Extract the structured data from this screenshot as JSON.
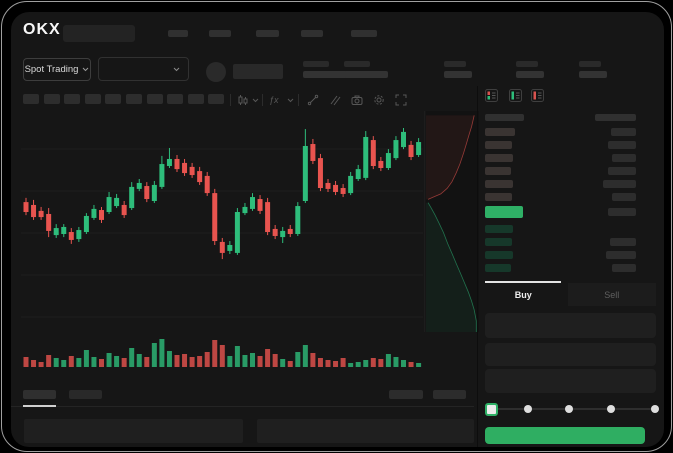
{
  "window": {
    "brand": "OKX"
  },
  "nav": {
    "item_placeholders": 5
  },
  "market_bar": {
    "selector_label": "Spot Trading",
    "pair_dropdown_value": "",
    "stat_placeholders": 5
  },
  "chart_toolbar": {
    "timeframe_placeholders": 10,
    "indicator_label": "ƒx",
    "tool_icons": [
      "candlestick-icon",
      "chevron-down-icon",
      "indicators-icon",
      "chevron-down-icon",
      "trendline-icon",
      "draw-tool-icon",
      "camera-icon",
      "settings-icon",
      "fullscreen-icon"
    ]
  },
  "chart_data": [
    {
      "type": "candlestick",
      "title": "",
      "x_axis": "time (tick labels not visible)",
      "y_axis": "price (scale hidden, relative units 0-100)",
      "grid": "horizontal only, unlabeled",
      "up_color": "#2EBD7B",
      "down_color": "#E8544F",
      "candles": [
        [
          59.5,
          61.4,
          53.6,
          55.0
        ],
        [
          58.2,
          60.5,
          51.4,
          52.7
        ],
        [
          55.5,
          57.3,
          51.4,
          52.7
        ],
        [
          54.1,
          56.8,
          43.6,
          46.4
        ],
        [
          44.5,
          49.5,
          43.2,
          47.7
        ],
        [
          45.0,
          49.5,
          43.6,
          48.2
        ],
        [
          45.9,
          47.7,
          40.5,
          42.3
        ],
        [
          42.7,
          48.2,
          41.4,
          46.8
        ],
        [
          45.9,
          54.5,
          45.0,
          53.2
        ],
        [
          52.3,
          58.2,
          51.4,
          56.4
        ],
        [
          55.9,
          57.3,
          50.0,
          51.4
        ],
        [
          55.0,
          64.1,
          54.1,
          61.8
        ],
        [
          57.7,
          63.2,
          56.8,
          61.4
        ],
        [
          58.2,
          60.0,
          52.3,
          53.6
        ],
        [
          56.8,
          68.6,
          55.9,
          66.4
        ],
        [
          65.5,
          70.0,
          64.5,
          68.2
        ],
        [
          66.8,
          68.6,
          59.5,
          60.9
        ],
        [
          60.0,
          69.1,
          59.1,
          67.3
        ],
        [
          66.4,
          80.5,
          65.5,
          76.8
        ],
        [
          75.9,
          84.1,
          75.0,
          79.1
        ],
        [
          79.1,
          80.9,
          73.2,
          74.5
        ],
        [
          77.3,
          79.1,
          71.4,
          72.7
        ],
        [
          75.5,
          77.3,
          70.5,
          71.8
        ],
        [
          73.6,
          75.5,
          67.3,
          68.6
        ],
        [
          71.4,
          73.2,
          62.3,
          63.6
        ],
        [
          63.6,
          65.5,
          40.0,
          41.8
        ],
        [
          41.4,
          43.2,
          33.6,
          36.4
        ],
        [
          37.3,
          41.8,
          35.9,
          40.0
        ],
        [
          36.4,
          56.8,
          35.5,
          55.0
        ],
        [
          54.5,
          59.1,
          53.6,
          57.3
        ],
        [
          56.4,
          63.6,
          55.5,
          61.8
        ],
        [
          60.9,
          62.7,
          54.1,
          55.5
        ],
        [
          59.5,
          61.4,
          44.5,
          45.9
        ],
        [
          47.3,
          49.1,
          42.7,
          44.1
        ],
        [
          43.6,
          48.2,
          40.9,
          46.4
        ],
        [
          47.3,
          49.1,
          43.6,
          45.0
        ],
        [
          45.0,
          59.5,
          44.1,
          57.7
        ],
        [
          60.0,
          92.7,
          59.1,
          85.0
        ],
        [
          85.9,
          88.2,
          76.8,
          78.2
        ],
        [
          79.5,
          81.4,
          64.5,
          65.9
        ],
        [
          68.2,
          70.0,
          64.1,
          65.5
        ],
        [
          67.3,
          69.1,
          62.7,
          64.1
        ],
        [
          65.9,
          67.7,
          61.8,
          63.2
        ],
        [
          63.6,
          73.2,
          62.7,
          71.4
        ],
        [
          70.0,
          76.4,
          69.1,
          74.5
        ],
        [
          70.5,
          91.8,
          69.5,
          89.1
        ],
        [
          87.7,
          89.5,
          74.5,
          75.9
        ],
        [
          78.2,
          80.0,
          73.6,
          75.0
        ],
        [
          75.0,
          83.6,
          74.1,
          81.8
        ],
        [
          79.5,
          89.5,
          78.6,
          87.7
        ],
        [
          84.5,
          93.2,
          83.6,
          91.4
        ],
        [
          85.5,
          87.3,
          78.6,
          80.0
        ],
        [
          80.9,
          88.6,
          80.0,
          86.8
        ]
      ],
      "volume": [
        10,
        7,
        5,
        12,
        9,
        7,
        11,
        9,
        17,
        10,
        8,
        14,
        11,
        9,
        19,
        13,
        10,
        24,
        28,
        16,
        12,
        13,
        10,
        11,
        15,
        27,
        22,
        11,
        21,
        12,
        14,
        11,
        18,
        13,
        8,
        6,
        15,
        22,
        14,
        9,
        7,
        6,
        9,
        4,
        5,
        7,
        9,
        8,
        13,
        10,
        7,
        5,
        4
      ]
    },
    {
      "type": "area-depth",
      "orientation": "vertical (asks top, bids bottom)",
      "ask_color": "#E8544F",
      "bid_color": "#2EBD7B",
      "ask_curve": [
        [
          0.91,
          0.02
        ],
        [
          0.86,
          0.07
        ],
        [
          0.81,
          0.11
        ],
        [
          0.76,
          0.15
        ],
        [
          0.71,
          0.19
        ],
        [
          0.64,
          0.24
        ],
        [
          0.57,
          0.28
        ],
        [
          0.49,
          0.32
        ],
        [
          0.4,
          0.35
        ],
        [
          0.28,
          0.375
        ],
        [
          0.13,
          0.39
        ],
        [
          0.04,
          0.4
        ]
      ],
      "bid_curve": [
        [
          0.04,
          0.415
        ],
        [
          0.1,
          0.44
        ],
        [
          0.17,
          0.47
        ],
        [
          0.25,
          0.51
        ],
        [
          0.33,
          0.55
        ],
        [
          0.41,
          0.6
        ],
        [
          0.49,
          0.645
        ],
        [
          0.57,
          0.69
        ],
        [
          0.65,
          0.735
        ],
        [
          0.73,
          0.78
        ],
        [
          0.8,
          0.82
        ],
        [
          0.86,
          0.86
        ],
        [
          0.91,
          0.9
        ],
        [
          0.95,
          0.95
        ],
        [
          0.95,
          1.0
        ]
      ]
    }
  ],
  "order_book": {
    "view_icons": [
      {
        "name": "book-combined-icon",
        "colors": [
          "#D9534F",
          "#2EBD7B"
        ]
      },
      {
        "name": "book-bids-icon",
        "colors": [
          "#2EBD7B"
        ]
      },
      {
        "name": "book-asks-icon",
        "colors": [
          "#D9534F"
        ]
      }
    ],
    "column_header_placeholders": 2,
    "asks": [
      {
        "price_w": 30,
        "amount_w": 25
      },
      {
        "price_w": 27,
        "amount_w": 28
      },
      {
        "price_w": 28,
        "amount_w": 24
      },
      {
        "price_w": 26,
        "amount_w": 28
      },
      {
        "price_w": 28,
        "amount_w": 33
      },
      {
        "price_w": 27,
        "amount_w": 24
      }
    ],
    "last_price_row": {
      "highlight_w": 38,
      "amount_w": 28,
      "highlight_color": "#2FB066"
    },
    "bids": [
      {
        "price_w": 28,
        "amount_w": 0
      },
      {
        "price_w": 27,
        "amount_w": 26
      },
      {
        "price_w": 28,
        "amount_w": 30
      },
      {
        "price_w": 26,
        "amount_w": 24
      }
    ]
  },
  "trade_panel": {
    "tabs": [
      {
        "label": "Buy"
      },
      {
        "label": "Sell"
      }
    ],
    "active_tab": "Buy",
    "input_placeholders": 3,
    "slider": {
      "stops": 5,
      "active_stop": 0,
      "accent": "#2FB066"
    },
    "submit": {
      "label": "",
      "color": "#2FAE62"
    }
  },
  "bottom_panel": {
    "tab_placeholders": 2,
    "active_tab_index": 0,
    "right_action_placeholders": 2,
    "table_placeholders": 2
  }
}
